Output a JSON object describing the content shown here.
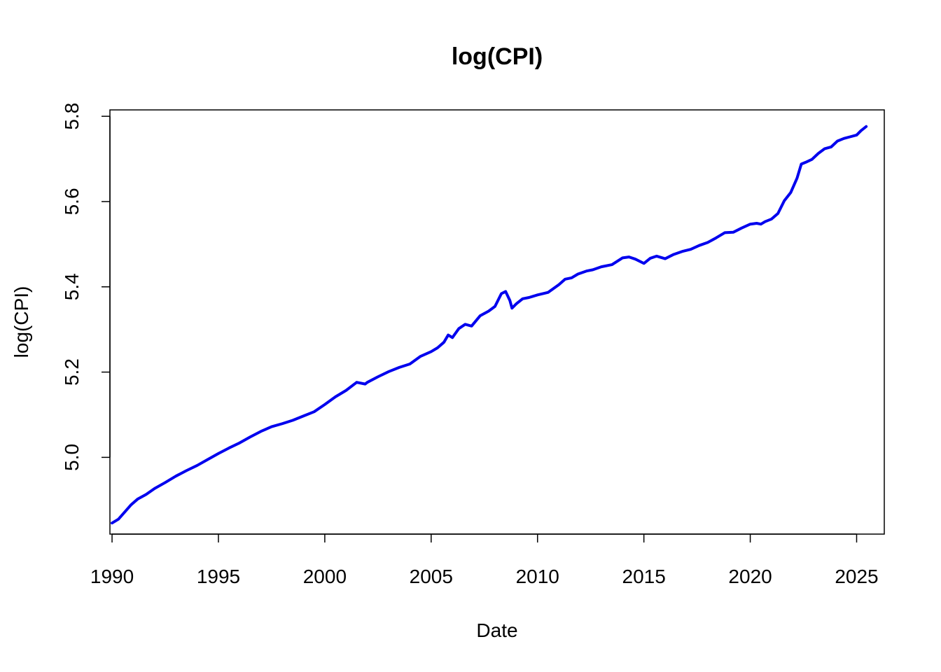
{
  "chart_data": {
    "type": "line",
    "title": "log(CPI)",
    "xlabel": "Date",
    "ylabel": "log(CPI)",
    "xlim": [
      1989.9,
      2026.3
    ],
    "ylim": [
      4.82,
      5.815
    ],
    "x_ticks": [
      1990,
      1995,
      2000,
      2005,
      2010,
      2015,
      2020,
      2025
    ],
    "x_tick_labels": [
      "1990",
      "1995",
      "2000",
      "2005",
      "2010",
      "2015",
      "2020",
      "2025"
    ],
    "y_ticks": [
      5.0,
      5.2,
      5.4,
      5.6,
      5.8
    ],
    "y_tick_labels": [
      "5.0",
      "5.2",
      "5.4",
      "5.6",
      "5.8"
    ],
    "grid": false,
    "legend": "none",
    "series": [
      {
        "color": "#0000ee",
        "x": [
          1990.0,
          1990.3,
          1990.6,
          1990.9,
          1991.2,
          1991.6,
          1992.0,
          1992.5,
          1993.0,
          1993.5,
          1994.0,
          1994.5,
          1995.0,
          1995.5,
          1996.0,
          1996.5,
          1997.0,
          1997.5,
          1998.0,
          1998.5,
          1999.0,
          1999.5,
          2000.0,
          2000.5,
          2001.0,
          2001.5,
          2001.9,
          2002.0,
          2002.5,
          2003.0,
          2003.5,
          2004.0,
          2004.5,
          2005.0,
          2005.3,
          2005.6,
          2005.8,
          2006.0,
          2006.3,
          2006.6,
          2006.9,
          2007.3,
          2007.7,
          2008.0,
          2008.3,
          2008.5,
          2008.7,
          2008.8,
          2009.0,
          2009.3,
          2009.6,
          2010.0,
          2010.5,
          2011.0,
          2011.3,
          2011.6,
          2011.9,
          2012.3,
          2012.6,
          2013.0,
          2013.5,
          2014.0,
          2014.3,
          2014.6,
          2015.0,
          2015.3,
          2015.6,
          2016.0,
          2016.4,
          2016.8,
          2017.2,
          2017.6,
          2018.0,
          2018.4,
          2018.8,
          2019.2,
          2019.6,
          2020.0,
          2020.3,
          2020.5,
          2020.7,
          2021.0,
          2021.3,
          2021.6,
          2021.9,
          2022.2,
          2022.4,
          2022.6,
          2022.9,
          2023.2,
          2023.5,
          2023.8,
          2024.1,
          2024.4,
          2024.7,
          2025.0,
          2025.2,
          2025.45
        ],
        "y": [
          4.846,
          4.855,
          4.872,
          4.889,
          4.902,
          4.913,
          4.927,
          4.941,
          4.956,
          4.969,
          4.981,
          4.995,
          5.009,
          5.022,
          5.034,
          5.048,
          5.061,
          5.072,
          5.079,
          5.087,
          5.097,
          5.107,
          5.124,
          5.142,
          5.157,
          5.176,
          5.172,
          5.176,
          5.189,
          5.201,
          5.211,
          5.219,
          5.237,
          5.248,
          5.257,
          5.27,
          5.287,
          5.281,
          5.302,
          5.312,
          5.308,
          5.332,
          5.343,
          5.354,
          5.384,
          5.389,
          5.368,
          5.35,
          5.36,
          5.372,
          5.375,
          5.381,
          5.387,
          5.405,
          5.418,
          5.421,
          5.43,
          5.437,
          5.44,
          5.447,
          5.452,
          5.468,
          5.47,
          5.465,
          5.455,
          5.467,
          5.472,
          5.466,
          5.476,
          5.483,
          5.488,
          5.497,
          5.504,
          5.515,
          5.527,
          5.528,
          5.538,
          5.547,
          5.549,
          5.547,
          5.553,
          5.559,
          5.572,
          5.602,
          5.621,
          5.655,
          5.688,
          5.692,
          5.699,
          5.713,
          5.724,
          5.728,
          5.742,
          5.748,
          5.752,
          5.756,
          5.766,
          5.776
        ]
      }
    ]
  }
}
